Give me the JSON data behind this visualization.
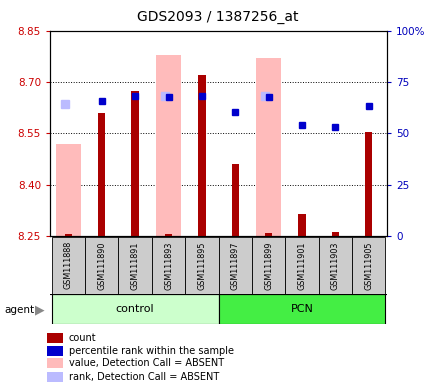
{
  "title": "GDS2093 / 1387256_at",
  "samples": [
    "GSM111888",
    "GSM111890",
    "GSM111891",
    "GSM111893",
    "GSM111895",
    "GSM111897",
    "GSM111899",
    "GSM111901",
    "GSM111903",
    "GSM111905"
  ],
  "ylim_left": [
    8.25,
    8.85
  ],
  "yticks_left": [
    8.25,
    8.4,
    8.55,
    8.7,
    8.85
  ],
  "yticks_right": [
    0,
    25,
    50,
    75,
    100
  ],
  "ytick_labels_right": [
    "0",
    "25",
    "50",
    "75",
    "100%"
  ],
  "hlines": [
    8.4,
    8.55,
    8.7
  ],
  "bar_bottom": 8.25,
  "count_values": [
    8.256,
    8.61,
    8.675,
    8.257,
    8.72,
    8.46,
    8.258,
    8.315,
    8.262,
    8.555
  ],
  "absent_value_values": [
    8.52,
    0,
    0,
    8.78,
    0,
    0,
    8.77,
    0,
    0,
    0
  ],
  "absent_rank_values": [
    8.635,
    0,
    0,
    8.66,
    0,
    0,
    8.66,
    0,
    0,
    0
  ],
  "percentile_rank_values": [
    0,
    8.645,
    8.66,
    8.655,
    8.658,
    8.612,
    8.655,
    8.575,
    8.568,
    8.63
  ],
  "absent_value_present": [
    true,
    false,
    false,
    true,
    false,
    false,
    true,
    false,
    false,
    false
  ],
  "absent_rank_present": [
    true,
    false,
    false,
    true,
    false,
    false,
    true,
    false,
    false,
    false
  ],
  "percentile_rank_present": [
    false,
    true,
    true,
    true,
    true,
    true,
    true,
    true,
    true,
    true
  ],
  "count_color": "#aa0000",
  "absent_value_color": "#ffbbbb",
  "absent_rank_color": "#bbbbff",
  "percentile_rank_color": "#0000cc",
  "control_color": "#ccffcc",
  "pcn_color": "#44ee44",
  "sample_bg_color": "#cccccc",
  "left_tick_color": "#cc0000",
  "right_tick_color": "#0000bb"
}
